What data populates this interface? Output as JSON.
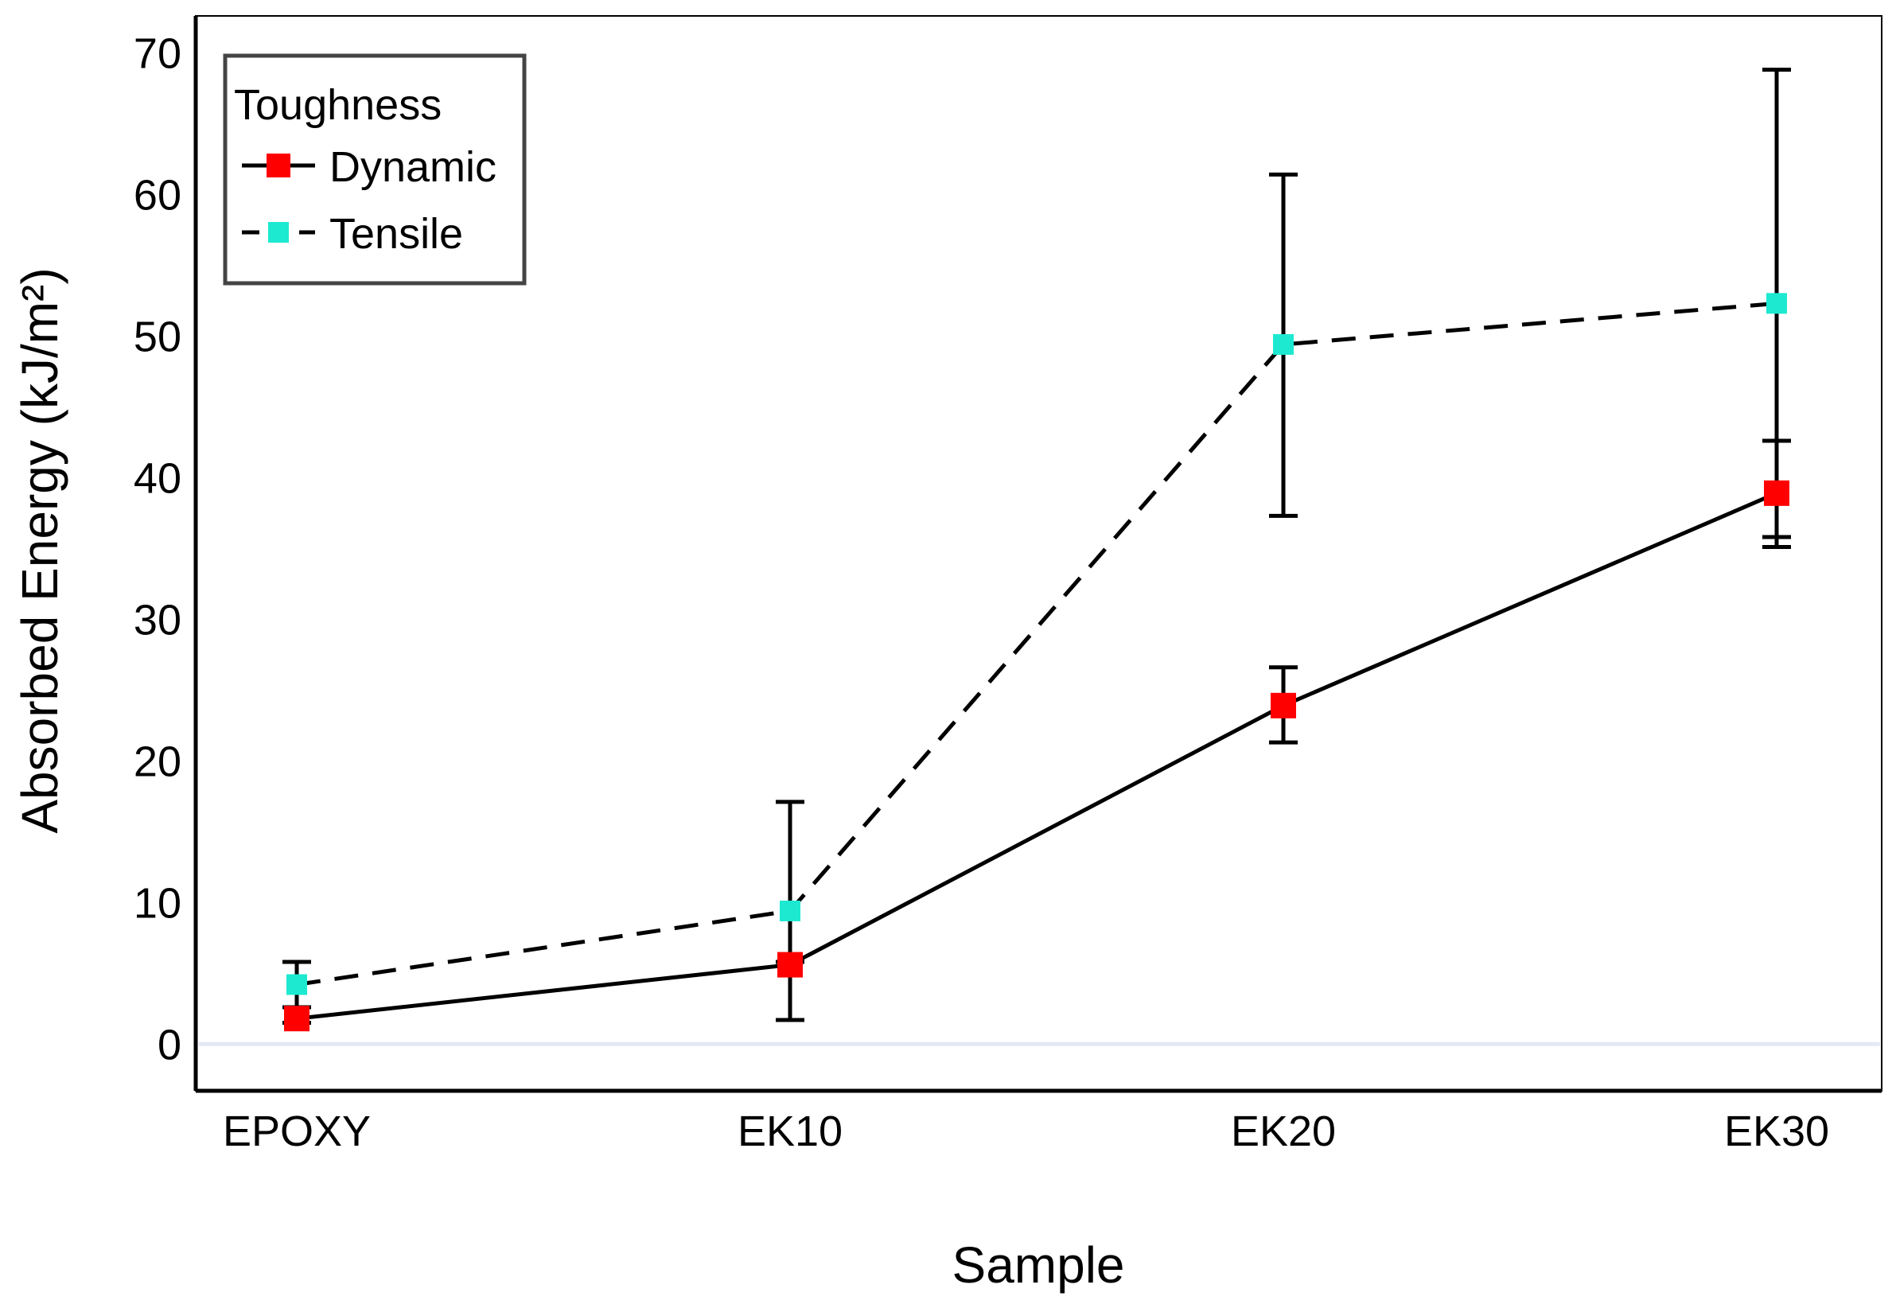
{
  "chart_data": {
    "type": "line",
    "categories": [
      "EPOXY",
      "EK10",
      "EK20",
      "EK30"
    ],
    "xlabel": "Sample",
    "ylabel": "Absorbed Energy (kJ/m²)",
    "ylim": [
      -3.3,
      72.6
    ],
    "yticks": [
      0,
      10,
      20,
      30,
      40,
      50,
      60,
      70
    ],
    "grid": false,
    "legend": {
      "title": "Toughness",
      "position": "top-left"
    },
    "series": [
      {
        "name": "Dynamic",
        "values": [
          1.8,
          5.6,
          23.9,
          38.9
        ],
        "error_low": [
          1.5,
          1.7,
          21.3,
          35.1
        ],
        "error_high": [
          2.6,
          5.8,
          26.6,
          42.6
        ],
        "color": "#ff0000",
        "line_style": "solid"
      },
      {
        "name": "Tensile",
        "values": [
          4.2,
          9.4,
          49.4,
          52.3
        ],
        "error_low": [
          2.6,
          1.7,
          37.3,
          35.8
        ],
        "error_high": [
          5.8,
          17.1,
          61.4,
          68.8
        ],
        "color": "#1de9d1",
        "line_style": "dashed"
      }
    ]
  }
}
